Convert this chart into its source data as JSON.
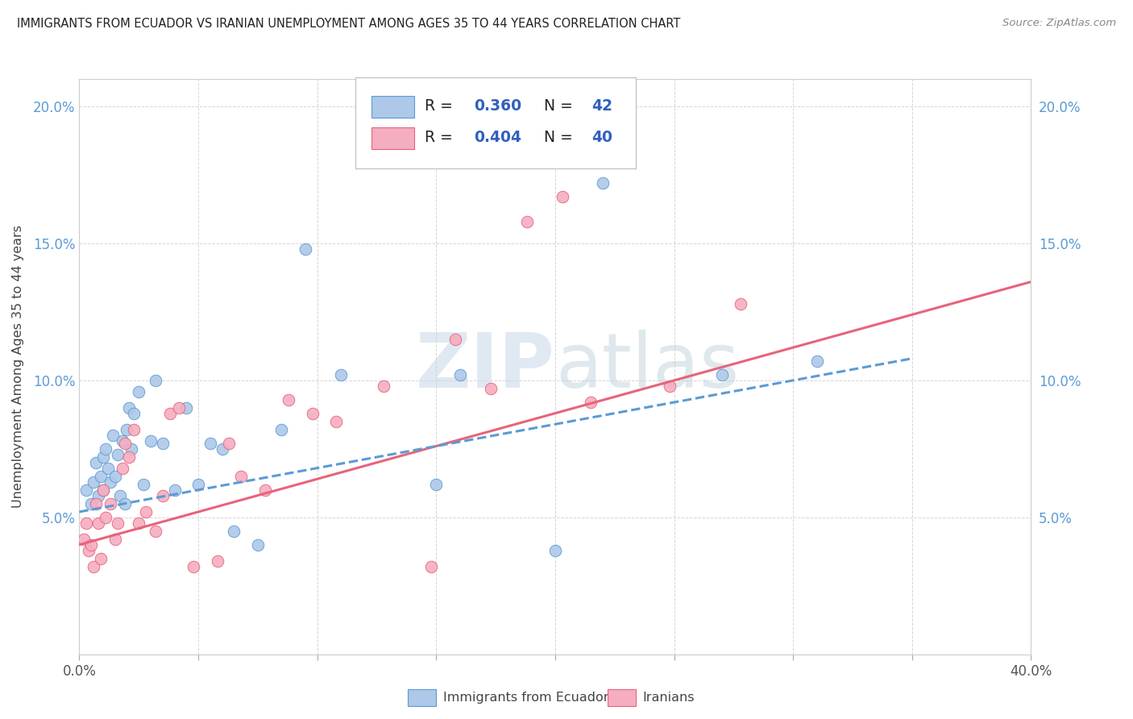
{
  "title": "IMMIGRANTS FROM ECUADOR VS IRANIAN UNEMPLOYMENT AMONG AGES 35 TO 44 YEARS CORRELATION CHART",
  "source": "Source: ZipAtlas.com",
  "ylabel": "Unemployment Among Ages 35 to 44 years",
  "xlim": [
    0.0,
    0.4
  ],
  "ylim": [
    0.0,
    0.21
  ],
  "xticks": [
    0.0,
    0.05,
    0.1,
    0.15,
    0.2,
    0.25,
    0.3,
    0.35,
    0.4
  ],
  "yticks": [
    0.0,
    0.05,
    0.1,
    0.15,
    0.2
  ],
  "legend_r1": "0.360",
  "legend_n1": "42",
  "legend_r2": "0.404",
  "legend_n2": "40",
  "ecuador_color": "#adc8e8",
  "iranian_color": "#f5adc0",
  "line_ecuador_color": "#5b9bd5",
  "line_iranian_color": "#e8637a",
  "blue_text_color": "#3060c0",
  "watermark_color": "#d0dce8",
  "ecuador_scatter_x": [
    0.003,
    0.005,
    0.006,
    0.007,
    0.008,
    0.009,
    0.01,
    0.01,
    0.011,
    0.012,
    0.013,
    0.014,
    0.015,
    0.016,
    0.017,
    0.018,
    0.019,
    0.02,
    0.021,
    0.022,
    0.023,
    0.025,
    0.027,
    0.03,
    0.032,
    0.035,
    0.04,
    0.045,
    0.05,
    0.055,
    0.06,
    0.065,
    0.075,
    0.085,
    0.095,
    0.11,
    0.15,
    0.16,
    0.2,
    0.22,
    0.27,
    0.31
  ],
  "ecuador_scatter_y": [
    0.06,
    0.055,
    0.063,
    0.07,
    0.058,
    0.065,
    0.072,
    0.06,
    0.075,
    0.068,
    0.063,
    0.08,
    0.065,
    0.073,
    0.058,
    0.078,
    0.055,
    0.082,
    0.09,
    0.075,
    0.088,
    0.096,
    0.062,
    0.078,
    0.1,
    0.077,
    0.06,
    0.09,
    0.062,
    0.077,
    0.075,
    0.045,
    0.04,
    0.082,
    0.148,
    0.102,
    0.062,
    0.102,
    0.038,
    0.172,
    0.102,
    0.107
  ],
  "iranian_scatter_x": [
    0.002,
    0.003,
    0.004,
    0.005,
    0.006,
    0.007,
    0.008,
    0.009,
    0.01,
    0.011,
    0.013,
    0.015,
    0.016,
    0.018,
    0.019,
    0.021,
    0.023,
    0.025,
    0.028,
    0.032,
    0.035,
    0.038,
    0.042,
    0.048,
    0.058,
    0.063,
    0.068,
    0.078,
    0.088,
    0.098,
    0.108,
    0.128,
    0.148,
    0.158,
    0.173,
    0.188,
    0.203,
    0.215,
    0.248,
    0.278
  ],
  "iranian_scatter_y": [
    0.042,
    0.048,
    0.038,
    0.04,
    0.032,
    0.055,
    0.048,
    0.035,
    0.06,
    0.05,
    0.055,
    0.042,
    0.048,
    0.068,
    0.077,
    0.072,
    0.082,
    0.048,
    0.052,
    0.045,
    0.058,
    0.088,
    0.09,
    0.032,
    0.034,
    0.077,
    0.065,
    0.06,
    0.093,
    0.088,
    0.085,
    0.098,
    0.032,
    0.115,
    0.097,
    0.158,
    0.167,
    0.092,
    0.098,
    0.128
  ],
  "ecuador_trend_x": [
    0.0,
    0.35
  ],
  "ecuador_trend_y": [
    0.052,
    0.108
  ],
  "iranian_trend_x": [
    0.0,
    0.4
  ],
  "iranian_trend_y": [
    0.04,
    0.136
  ]
}
